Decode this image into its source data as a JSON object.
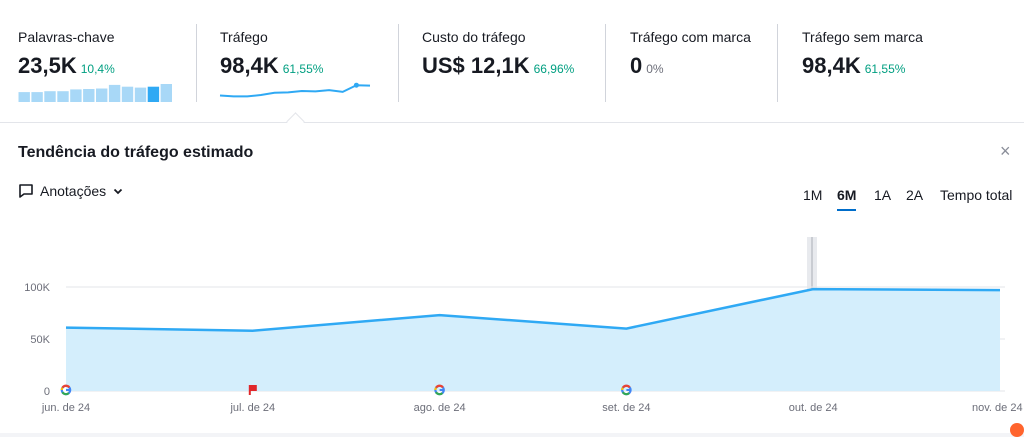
{
  "metrics": [
    {
      "label": "Palavras-chave",
      "value": "23,5K",
      "pct": "10,4%"
    },
    {
      "label": "Tráfego",
      "value": "98,4K",
      "pct": "61,55%"
    },
    {
      "label": "Custo do tráfego",
      "value": "US$ 12,1K",
      "pct": "66,96%"
    },
    {
      "label": "Tráfego com marca",
      "value": "0",
      "pct": "0%"
    },
    {
      "label": "Tráfego sem marca",
      "value": "98,4K",
      "pct": "61,55%"
    }
  ],
  "spark_bars": [
    0.55,
    0.55,
    0.6,
    0.6,
    0.7,
    0.72,
    0.75,
    0.95,
    0.85,
    0.8,
    0.85,
    1.0
  ],
  "spark_line": [
    0.25,
    0.2,
    0.2,
    0.28,
    0.4,
    0.42,
    0.5,
    0.48,
    0.55,
    0.45,
    0.82,
    0.8
  ],
  "panel": {
    "title": "Tendência do tráfego estimado",
    "close": "×",
    "annotations_label": "Anotações",
    "periods": [
      "1M",
      "6M",
      "1A",
      "2A",
      "Tempo total"
    ],
    "active_period": "6M"
  },
  "colors": {
    "line": "#2fa9f4",
    "fill": "#d4eefc",
    "accent": "#006dca",
    "positive": "#009f81",
    "flag": "#e0272b"
  },
  "chart_data": {
    "type": "area",
    "x": [
      "jun. de 24",
      "jul. de 24",
      "ago. de 24",
      "set. de 24",
      "out. de 24",
      "nov. de 24"
    ],
    "values": [
      61000,
      58000,
      73000,
      60000,
      98000,
      97000
    ],
    "ylim": [
      0,
      100000
    ],
    "yticks": [
      "0",
      "50K",
      "100K"
    ],
    "grid": true,
    "markers": [
      {
        "month": "jun. de 24",
        "icon": "google-icon"
      },
      {
        "month": "jul. de 24",
        "icon": "flag-icon"
      },
      {
        "month": "ago. de 24",
        "icon": "google-icon"
      },
      {
        "month": "set. de 24",
        "icon": "google-icon"
      }
    ]
  }
}
